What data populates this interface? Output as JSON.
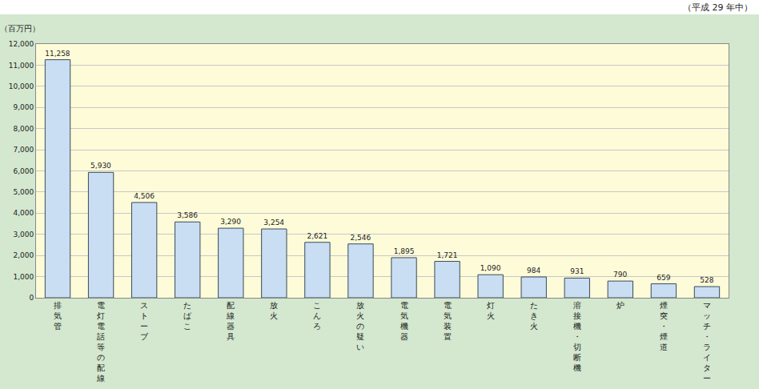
{
  "chart_data": {
    "type": "bar",
    "subtitle": "（平成 29 年中）",
    "y_label": "（百万円）",
    "categories": [
      "排気管",
      "電灯電話等の配線",
      "ストーブ",
      "たばこ",
      "配線器具",
      "放火",
      "こんろ",
      "放火の疑い",
      "電気機器",
      "電気装置",
      "灯火",
      "たき火",
      "溶接機・切断機",
      "炉",
      "煙突・煙道",
      "マッチ・ライター"
    ],
    "values": [
      11258,
      5930,
      4506,
      3586,
      3290,
      3254,
      2621,
      2546,
      1895,
      1721,
      1090,
      984,
      931,
      790,
      659,
      528
    ],
    "value_labels": [
      "11,258",
      "5,930",
      "4,506",
      "3,586",
      "3,290",
      "3,254",
      "2,621",
      "2,546",
      "1,895",
      "1,721",
      "1,090",
      "984",
      "931",
      "790",
      "659",
      "528"
    ],
    "color": "#c9def2",
    "ylim": [
      0,
      12000
    ],
    "yticks": [
      0,
      {
        "value": 1000,
        "label": "1,000"
      },
      {
        "value": 2000,
        "label": "2,000"
      },
      {
        "value": 3000,
        "label": "3,000"
      },
      {
        "value": 4000,
        "label": "4,000"
      },
      {
        "value": 5000,
        "label": "5,000"
      },
      {
        "value": 6000,
        "label": "6,000"
      },
      {
        "value": 7000,
        "label": "7,000"
      },
      {
        "value": 8000,
        "label": "8,000"
      },
      {
        "value": 9000,
        "label": "9,000"
      },
      {
        "value": 10000,
        "label": "10,000"
      },
      {
        "value": 11000,
        "label": "11,000"
      },
      {
        "value": 12000,
        "label": "12,000"
      }
    ],
    "grid": true,
    "data_labels": true
  }
}
